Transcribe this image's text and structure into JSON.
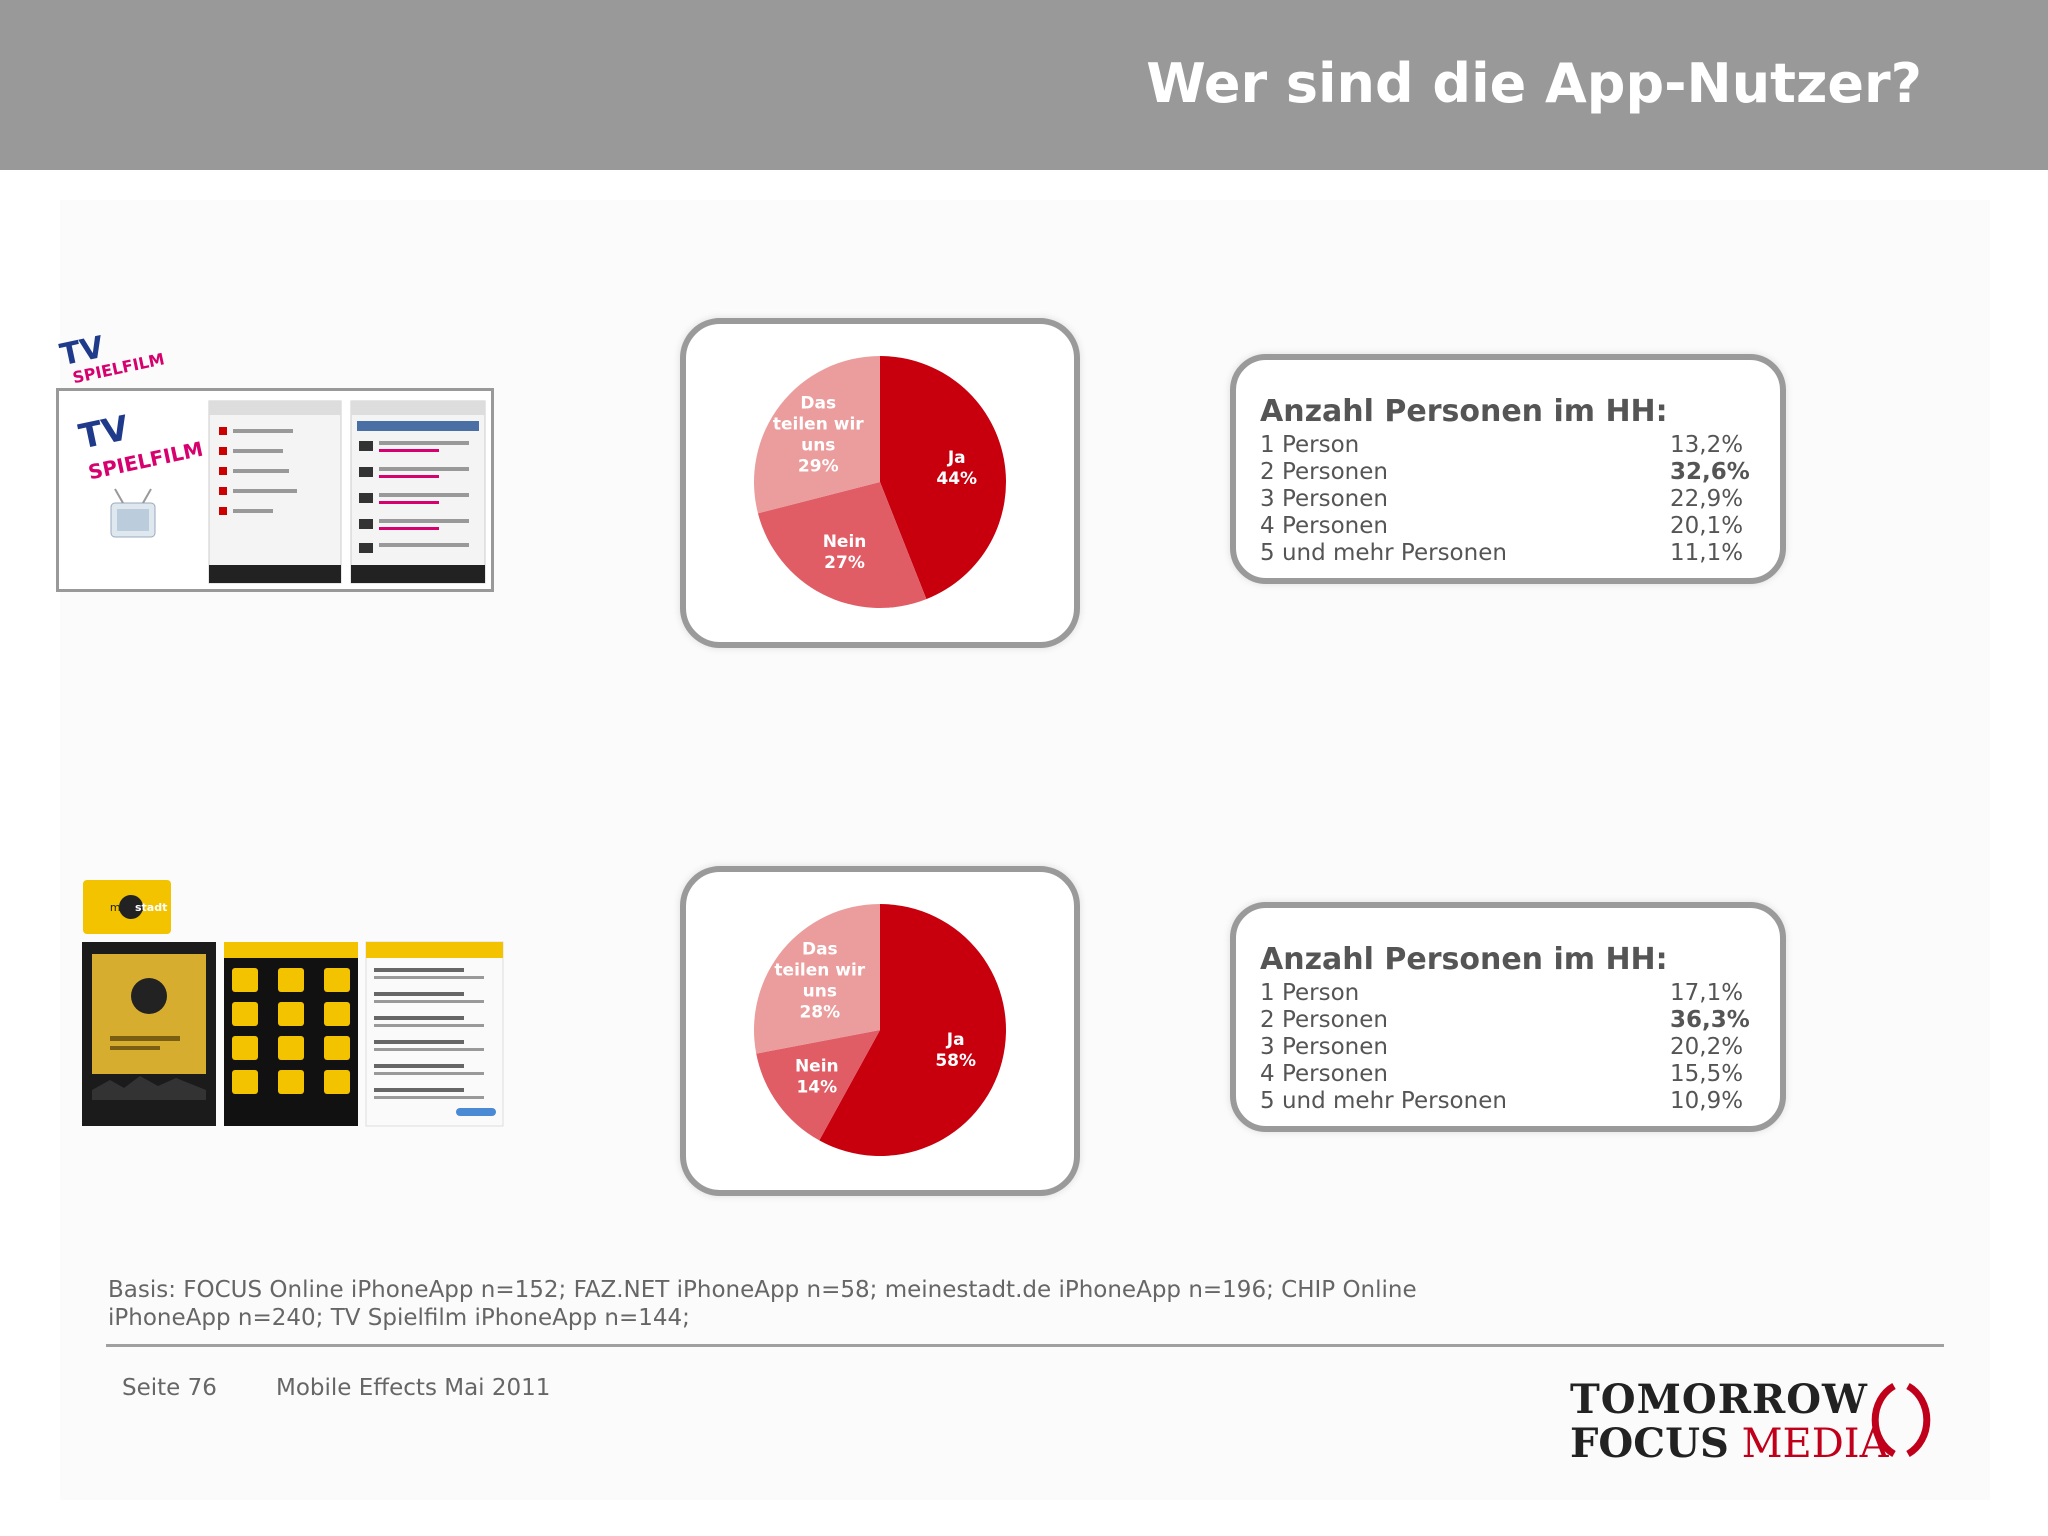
{
  "header": {
    "title": "Wer sind die App-Nutzer?"
  },
  "colors": {
    "ja": "#c8000e",
    "nein": "#e05d66",
    "teilen": "#eb9c9c",
    "header_bg": "#999999",
    "brand_red": "#c0001b"
  },
  "sections": [
    {
      "app_logo_icon": "tv-spielfilm-logo",
      "screenshot_icon": "tv-spielfilm-app-screenshots"
    },
    {
      "app_logo_icon": "meinestadt-logo",
      "screenshot_icon": "meinestadt-app-screenshots"
    }
  ],
  "stats": [
    {
      "title": "Anzahl Personen im HH:",
      "rows": [
        {
          "label": "1 Person",
          "value": "13,2%"
        },
        {
          "label": "2 Personen",
          "value": "32,6%"
        },
        {
          "label": "3 Personen",
          "value": "22,9%"
        },
        {
          "label": "4 Personen",
          "value": "20,1%"
        },
        {
          "label": "5 und mehr Personen",
          "value": "11,1%"
        }
      ]
    },
    {
      "title": "Anzahl Personen im HH:",
      "rows": [
        {
          "label": "1 Person",
          "value": "17,1%"
        },
        {
          "label": "2 Personen",
          "value": "36,3%"
        },
        {
          "label": "3 Personen",
          "value": "20,2%"
        },
        {
          "label": "4 Personen",
          "value": "15,5%"
        },
        {
          "label": "5 und mehr Personen",
          "value": "10,9%"
        }
      ]
    }
  ],
  "chart_data": [
    {
      "type": "pie",
      "title": "",
      "slices": [
        {
          "label": "Ja",
          "value": 44,
          "display": "44%",
          "color": "#c8000e"
        },
        {
          "label": "Nein",
          "value": 27,
          "display": "27%",
          "color": "#e05d66"
        },
        {
          "label": "Das teilen wir uns",
          "value": 29,
          "display": "29%",
          "color": "#eb9c9c"
        }
      ]
    },
    {
      "type": "pie",
      "title": "",
      "slices": [
        {
          "label": "Ja",
          "value": 58,
          "display": "58%",
          "color": "#c8000e"
        },
        {
          "label": "Nein",
          "value": 14,
          "display": "14%",
          "color": "#e05d66"
        },
        {
          "label": "Das teilen wir uns",
          "value": 28,
          "display": "28%",
          "color": "#eb9c9c"
        }
      ]
    }
  ],
  "footer": {
    "basis": "Basis: FOCUS Online iPhoneApp n=152; FAZ.NET iPhoneApp n=58; meinestadt.de iPhoneApp n=196; CHIP Online iPhoneApp n=240; TV Spielfilm iPhoneApp n=144;",
    "page": "Seite 76",
    "event": "Mobile Effects Mai 2011",
    "brand_line1": "TOMORROW",
    "brand_focus": "FOCUS",
    "brand_media": "MEDIA"
  }
}
